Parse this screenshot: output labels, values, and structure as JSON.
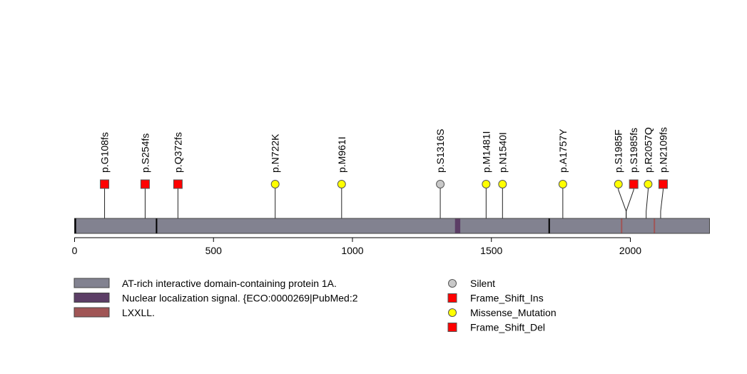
{
  "chart_data": {
    "type": "lollipop",
    "protein_length": 2285,
    "x_range": [
      0,
      2285
    ],
    "x_ticks": [
      0,
      500,
      1000,
      1500,
      2000
    ],
    "protein": {
      "name": "AT-rich interactive domain-containing protein 1A.",
      "color": "#828290"
    },
    "domains": [
      {
        "name": "Nuclear localization signal. {ECO:0000269|PubMed:2",
        "color": "#5c3e66",
        "start": 1369,
        "end": 1388
      },
      {
        "name": "LXXLL.",
        "color": "#a05555",
        "start": 1966,
        "end": 1970
      },
      {
        "name": "LXXLL.",
        "color": "#a05555",
        "start": 2084,
        "end": 2088
      }
    ],
    "region_marks": [
      3,
      295,
      1708
    ],
    "mutations": [
      {
        "label": "p.G108fs",
        "position": 108,
        "type": "Frame_Shift_Ins"
      },
      {
        "label": "p.S254fs",
        "position": 254,
        "type": "Frame_Shift_Del"
      },
      {
        "label": "p.Q372fs",
        "position": 372,
        "type": "Frame_Shift_Del"
      },
      {
        "label": "p.N722K",
        "position": 722,
        "type": "Missense_Mutation"
      },
      {
        "label": "p.M961I",
        "position": 961,
        "type": "Missense_Mutation"
      },
      {
        "label": "p.S1316S",
        "position": 1316,
        "type": "Silent"
      },
      {
        "label": "p.M1481I",
        "position": 1481,
        "type": "Missense_Mutation"
      },
      {
        "label": "p.N1540I",
        "position": 1540,
        "type": "Missense_Mutation"
      },
      {
        "label": "p.A1757Y",
        "position": 1757,
        "type": "Missense_Mutation"
      },
      {
        "label": "p.S1985F",
        "position": 1985,
        "head_position": 1957,
        "type": "Missense_Mutation"
      },
      {
        "label": "p.S1985fs",
        "position": 1985,
        "head_position": 2012,
        "type": "Frame_Shift_Ins"
      },
      {
        "label": "p.R2057Q",
        "position": 2057,
        "head_position": 2064,
        "type": "Missense_Mutation"
      },
      {
        "label": "p.N2109fs",
        "position": 2109,
        "head_position": 2118,
        "type": "Frame_Shift_Del"
      }
    ],
    "domain_legend": [
      {
        "label": "AT-rich interactive domain-containing protein 1A.",
        "color": "#828290"
      },
      {
        "label": "Nuclear localization signal. {ECO:0000269|PubMed:2",
        "color": "#5c3e66"
      },
      {
        "label": "LXXLL.",
        "color": "#a05555"
      }
    ],
    "mutation_legend": [
      {
        "label": "Silent",
        "shape": "circle",
        "color": "#c8c8c8"
      },
      {
        "label": "Frame_Shift_Ins",
        "shape": "square",
        "color": "#ff0000"
      },
      {
        "label": "Missense_Mutation",
        "shape": "circle",
        "color": "#ffff00"
      },
      {
        "label": "Frame_Shift_Del",
        "shape": "square",
        "color": "#ff0000"
      }
    ],
    "type_styles": {
      "Silent": {
        "shape": "circle",
        "color": "#c8c8c8"
      },
      "Missense_Mutation": {
        "shape": "circle",
        "color": "#ffff00"
      },
      "Frame_Shift_Ins": {
        "shape": "square",
        "color": "#ff0000"
      },
      "Frame_Shift_Del": {
        "shape": "square",
        "color": "#ff0000"
      }
    }
  }
}
